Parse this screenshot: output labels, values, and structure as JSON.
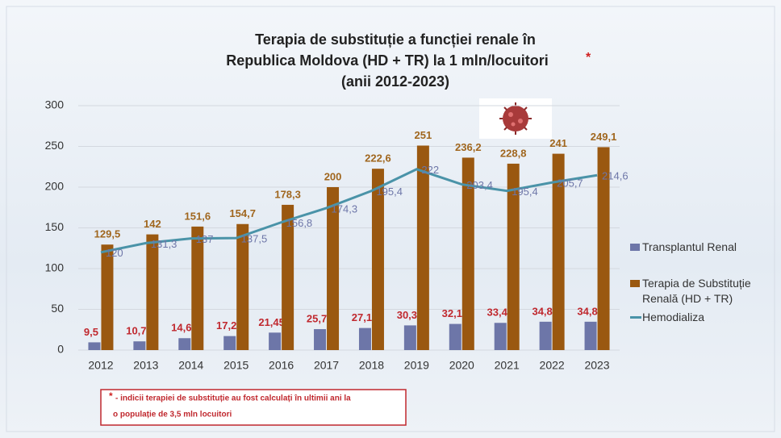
{
  "chart_data": {
    "type": "bar",
    "title": [
      "Terapia de substituție a funcției renale în",
      "Republica Moldova (HD + TR) la 1 mln/locuitori",
      "(anii 2012-2023)"
    ],
    "title_mark": "*",
    "categories": [
      "2012",
      "2013",
      "2014",
      "2015",
      "2016",
      "2017",
      "2018",
      "2019",
      "2020",
      "2021",
      "2022",
      "2023"
    ],
    "series": [
      {
        "name": "Transplantul Renal",
        "type": "bar",
        "color": "#6d76a8",
        "values": [
          9.5,
          10.7,
          14.6,
          17.2,
          21.45,
          25.7,
          27.1,
          30.3,
          32.1,
          33.4,
          34.8,
          34.8
        ],
        "value_labels": [
          "9,5",
          "10,7",
          "14,6",
          "17,2",
          "21,45",
          "25,7",
          "27,1",
          "30,3",
          "32,1",
          "33,4",
          "34,8",
          "34,8"
        ],
        "label_color": "#c0282e"
      },
      {
        "name": "Terapia de Substituție Renală (HD + TR)",
        "type": "bar",
        "color": "#9a5810",
        "values": [
          129.5,
          142,
          151.6,
          154.7,
          178.3,
          200,
          222.6,
          251,
          236.2,
          228.8,
          241,
          249.1
        ],
        "value_labels": [
          "129,5",
          "142",
          "151,6",
          "154,7",
          "178,3",
          "200",
          "222,6",
          "251",
          "236,2",
          "228,8",
          "241",
          "249,1"
        ],
        "label_color": "#a0661e"
      },
      {
        "name": "Hemodializa",
        "type": "line",
        "color": "#4a93a8",
        "values": [
          120,
          131.3,
          137,
          137.5,
          156.8,
          174.3,
          195.4,
          222,
          203.4,
          195.4,
          205.7,
          214.6
        ],
        "value_labels": [
          "120",
          "131,3",
          "137",
          "137,5",
          "156,8",
          "174,3",
          "195,4",
          "222",
          "203,4",
          "195,4",
          "205,7",
          "214,6"
        ],
        "label_color": "#6d76a8"
      }
    ],
    "ylim": [
      0,
      300
    ],
    "yticks": [
      0,
      50,
      100,
      150,
      200,
      250,
      300
    ],
    "grid": true,
    "legend": "right",
    "footnote": {
      "mark": "*",
      "lines": [
        "- indicii terapiei de substituție au fost calculați în ultimii ani la",
        "o populație de 3,5 mln locuitori"
      ]
    }
  }
}
